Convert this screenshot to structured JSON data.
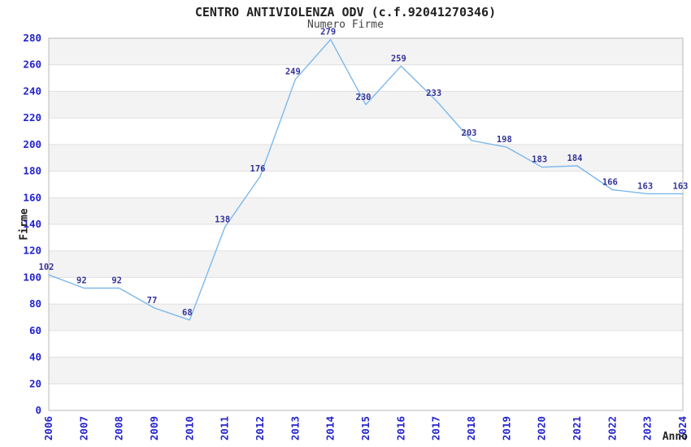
{
  "chart_data": {
    "type": "line",
    "title": "CENTRO ANTIVIOLENZA ODV (c.f.92041270346)",
    "subtitle": "Numero Firme",
    "xlabel": "Anno",
    "ylabel": "Firme",
    "x": [
      "2006",
      "2007",
      "2008",
      "2009",
      "2010",
      "2011",
      "2012",
      "2013",
      "2014",
      "2015",
      "2016",
      "2017",
      "2018",
      "2019",
      "2020",
      "2021",
      "2022",
      "2023",
      "2024"
    ],
    "values": [
      102,
      92,
      92,
      77,
      68,
      138,
      176,
      249,
      279,
      230,
      259,
      233,
      203,
      198,
      183,
      184,
      166,
      163,
      163
    ],
    "ylim": [
      0,
      280
    ],
    "ytick_step": 20,
    "grid": true,
    "legend": "none",
    "point_labels_visible": true,
    "colors": {
      "line": "#7db8ea",
      "tick_label": "#2323cc",
      "point_label": "#333399",
      "band": "#f3f3f3",
      "gridline": "#e0e0e0",
      "border": "#b8b8b8",
      "title": "#222222",
      "subtitle": "#444444",
      "axis_title": "#222222",
      "background": "#ffffff"
    }
  }
}
